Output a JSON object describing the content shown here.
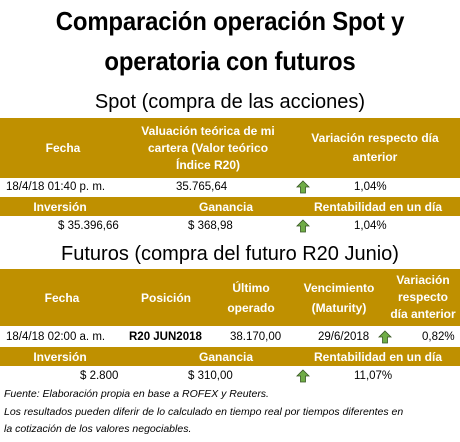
{
  "title": {
    "line1": "Comparación operación Spot y",
    "line2": "operatoria con futuros"
  },
  "spot": {
    "heading": "Spot (compra de las acciones)",
    "headers": {
      "fecha": "Fecha",
      "valuacion": "Valuación teórica de mi cartera (Valor teórico Índice R20)",
      "variacion": "Variación respecto día anterior"
    },
    "row": {
      "fecha": "18/4/18 01:40 p. m.",
      "valuacion": "35.765,64",
      "variacion": "1,04%"
    },
    "headers2": {
      "inversion": "Inversión",
      "ganancia": "Ganancia",
      "rentabilidad": "Rentabilidad en un día"
    },
    "row2": {
      "inversion": "$ 35.396,66",
      "ganancia": "$ 368,98",
      "rentabilidad": "1,04%"
    }
  },
  "futuros": {
    "heading": "Futuros (compra del futuro R20 Junio)",
    "headers": {
      "fecha": "Fecha",
      "posicion": "Posición",
      "ultimo": "Último operado",
      "vencimiento": "Vencimiento (Maturity)",
      "variacion": "Variación respecto día anterior"
    },
    "row": {
      "fecha": "18/4/18 02:00 a. m.",
      "posicion": "R20 JUN2018",
      "ultimo": "38.170,00",
      "vencimiento": "29/6/2018",
      "variacion": "0,82%"
    },
    "headers2": {
      "inversion": "Inversión",
      "ganancia": "Ganancia",
      "rentabilidad": "Rentabilidad en un día"
    },
    "row2": {
      "inversion": "$ 2.800",
      "ganancia": "$ 310,00",
      "rentabilidad": "11,07%"
    }
  },
  "footnote": {
    "source": "Fuente: Elaboración propia en base a ROFEX y Reuters.",
    "disclaimer1": "Los resultados pueden diferir de lo calculado en tiempo real por tiempos diferentes en",
    "disclaimer2": "la cotización de los valores negociables."
  },
  "colors": {
    "header_bg": "#bf9000",
    "header_text": "#ffffff",
    "arrow_green": "#70ad47"
  },
  "icons": {
    "up_arrow": "up-arrow-icon"
  }
}
